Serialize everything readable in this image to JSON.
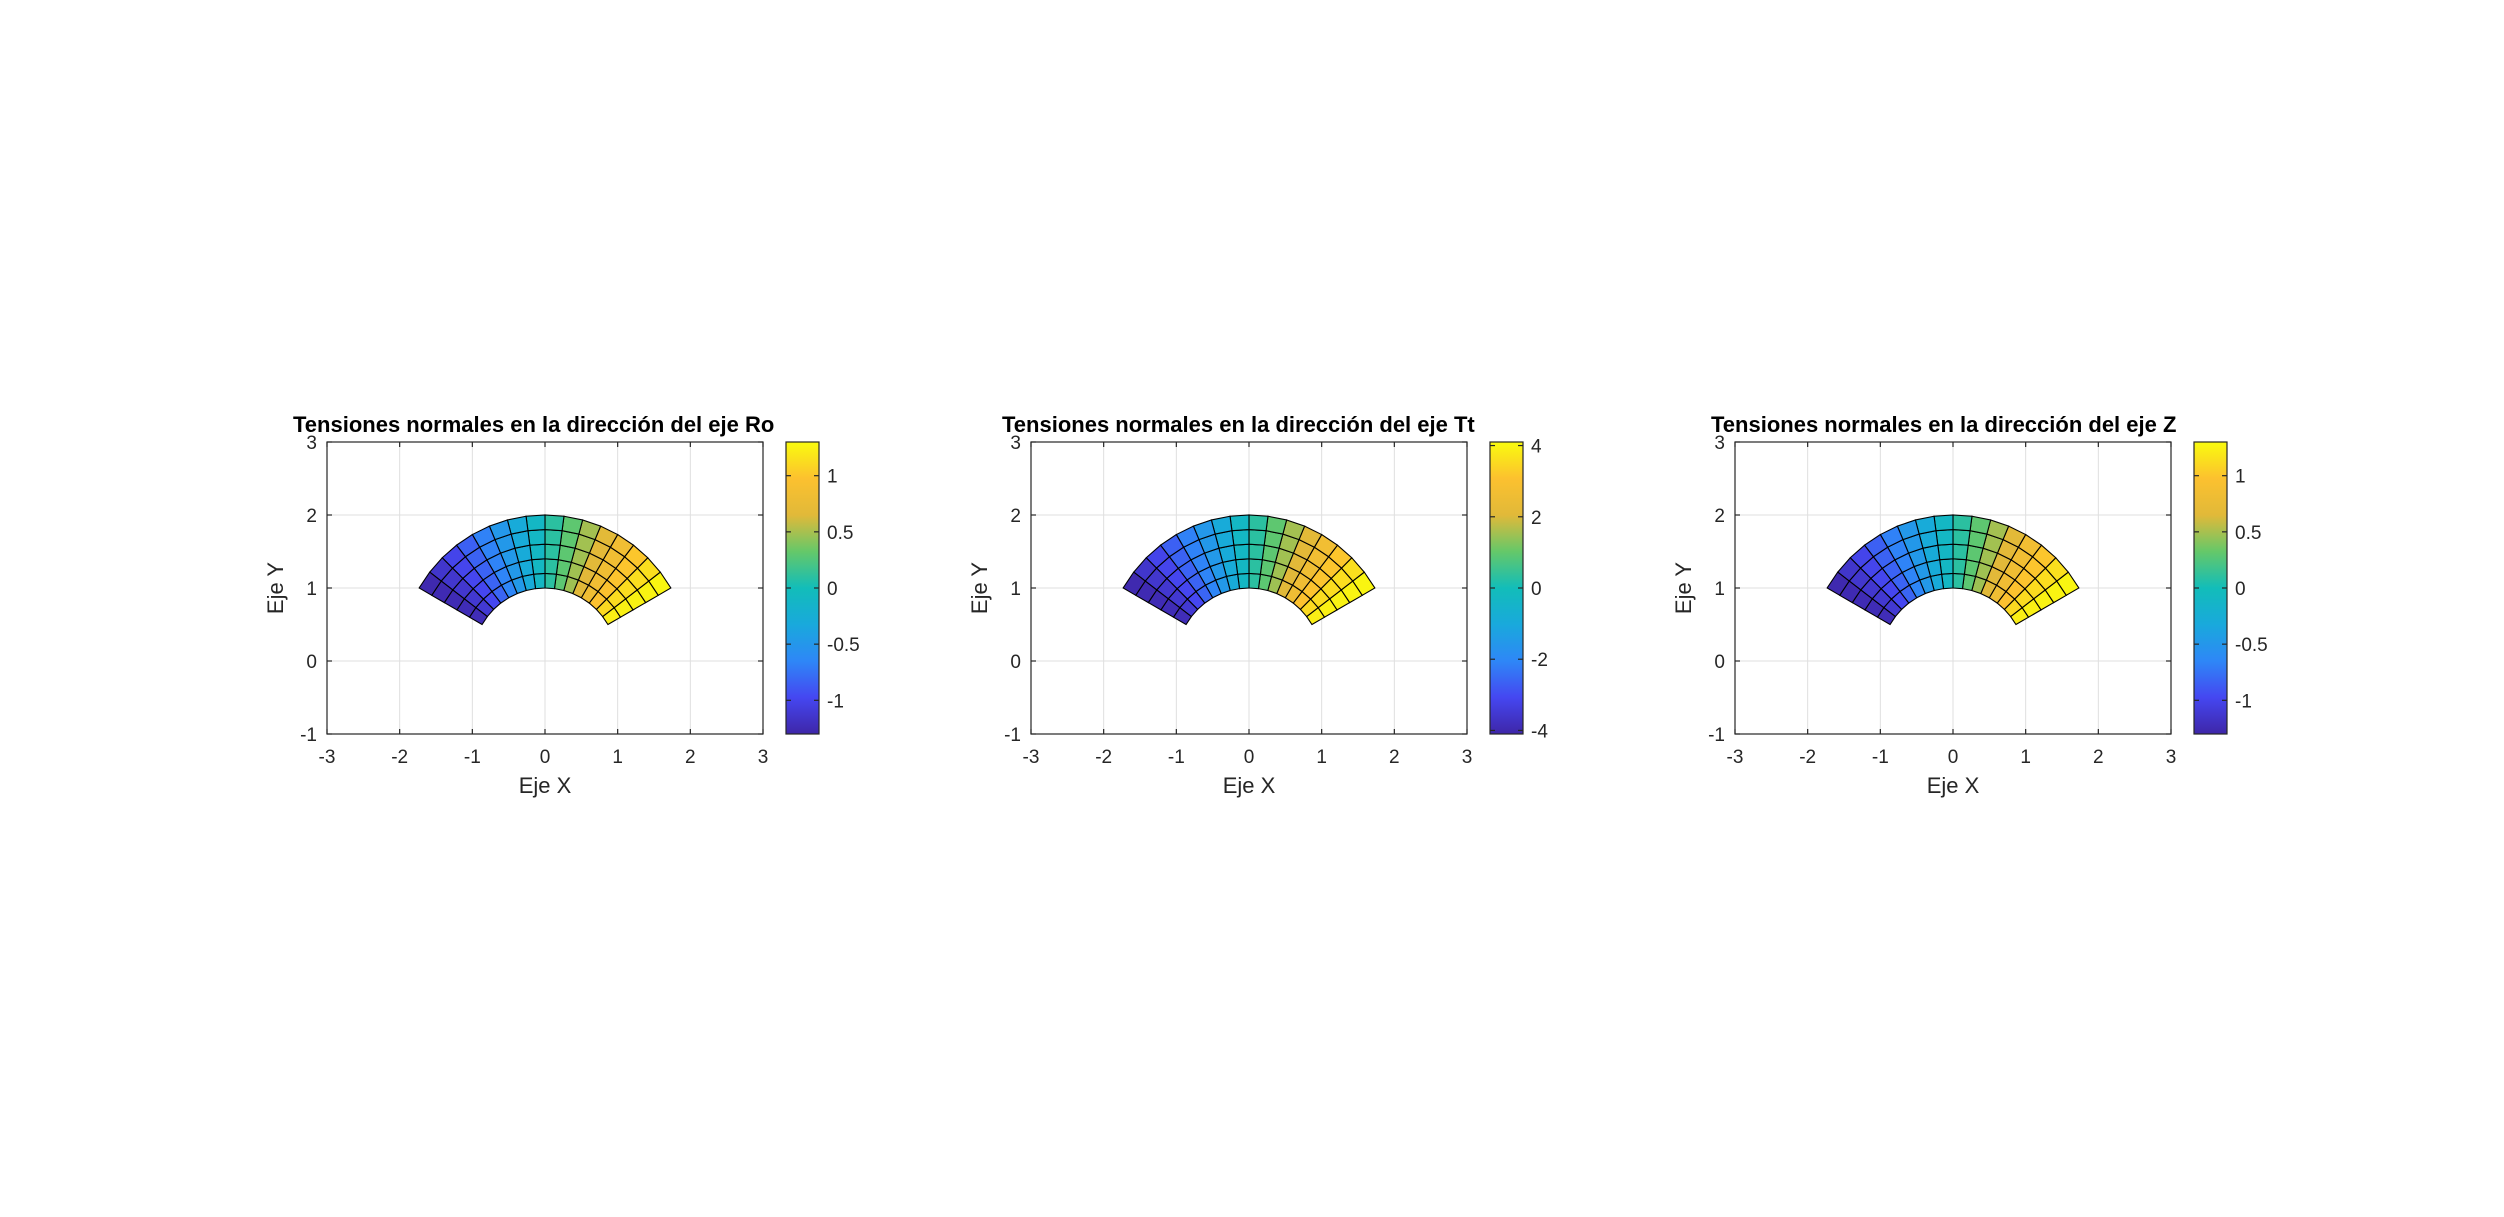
{
  "colormap": "parula",
  "chart_data": [
    {
      "type": "heatmap",
      "title": "Tensiones normales en la dirección del eje Ro",
      "xlabel": "Eje X",
      "ylabel": "Eje Y",
      "xlim": [
        -3,
        3
      ],
      "ylim": [
        -1,
        3
      ],
      "xticks": [
        "-3",
        "-2",
        "-1",
        "0",
        "1",
        "2",
        "3"
      ],
      "yticks": [
        "-1",
        "0",
        "1",
        "2",
        "3"
      ],
      "grid": true,
      "mesh": {
        "r_inner": 1,
        "r_outer": 2,
        "theta_start_deg": 30,
        "theta_end_deg": 150,
        "radial_divisions": 5,
        "angular_divisions": 16
      },
      "colorbar": {
        "limits": [
          -1.3,
          1.3
        ],
        "ticks": [
          -1,
          -0.5,
          0,
          0.5,
          1
        ],
        "tick_labels": [
          "-1",
          "-0.5",
          "0",
          "0.5",
          "1"
        ]
      },
      "field": "values vary from about -1.3 on the left edge (theta = 150°) to about 1.3 on the right edge (theta = 30°), proportional to cos(theta)"
    },
    {
      "type": "heatmap",
      "title": "Tensiones normales en la dirección del eje Tt",
      "xlabel": "Eje X",
      "ylabel": "Eje Y",
      "xlim": [
        -3,
        3
      ],
      "ylim": [
        -1,
        3
      ],
      "xticks": [
        "-3",
        "-2",
        "-1",
        "0",
        "1",
        "2",
        "3"
      ],
      "yticks": [
        "-1",
        "0",
        "1",
        "2",
        "3"
      ],
      "grid": true,
      "mesh": {
        "r_inner": 1,
        "r_outer": 2,
        "theta_start_deg": 30,
        "theta_end_deg": 150,
        "radial_divisions": 5,
        "angular_divisions": 16
      },
      "colorbar": {
        "limits": [
          -4.1,
          4.1
        ],
        "ticks": [
          -4,
          -2,
          0,
          2,
          4
        ],
        "tick_labels": [
          "-4",
          "-2",
          "0",
          "2",
          "4"
        ]
      },
      "field": "values vary from about -4.1 on the left edge to about 4.1 on the right edge, proportional to cos(theta)"
    },
    {
      "type": "heatmap",
      "title": "Tensiones normales en la dirección del eje Z",
      "xlabel": "Eje X",
      "ylabel": "Eje Y",
      "xlim": [
        -3,
        3
      ],
      "ylim": [
        -1,
        3
      ],
      "xticks": [
        "-3",
        "-2",
        "-1",
        "0",
        "1",
        "2",
        "3"
      ],
      "yticks": [
        "-1",
        "0",
        "1",
        "2",
        "3"
      ],
      "grid": true,
      "mesh": {
        "r_inner": 1,
        "r_outer": 2,
        "theta_start_deg": 30,
        "theta_end_deg": 150,
        "radial_divisions": 5,
        "angular_divisions": 16
      },
      "colorbar": {
        "limits": [
          -1.3,
          1.3
        ],
        "ticks": [
          -1,
          -0.5,
          0,
          0.5,
          1
        ],
        "tick_labels": [
          "-1",
          "-0.5",
          "0",
          "0.5",
          "1"
        ]
      },
      "field": "values vary from about -1.3 on the left edge to about 1.3 on the right edge, proportional to cos(theta)"
    }
  ]
}
